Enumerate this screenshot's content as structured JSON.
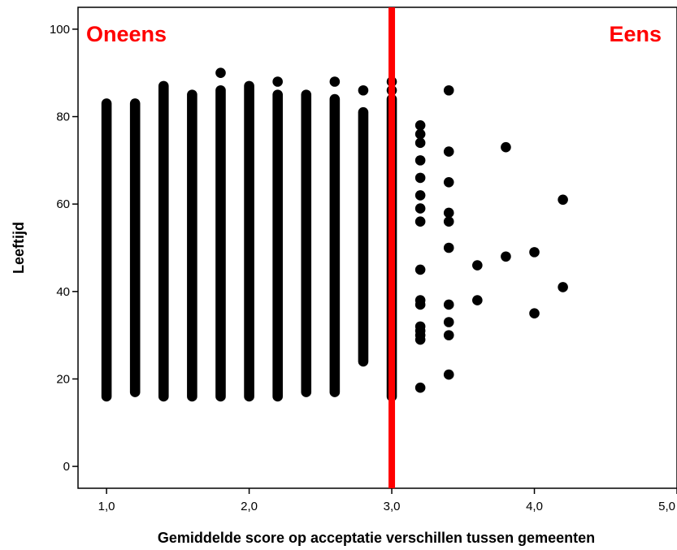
{
  "chart_data": {
    "type": "scatter",
    "title": "",
    "xlabel": "Gemiddelde score op acceptatie verschillen tussen gemeenten",
    "ylabel": "Leeftijd",
    "xlim": [
      0.8,
      5.0
    ],
    "ylim": [
      -5,
      105
    ],
    "x_ticks": [
      1.0,
      2.0,
      3.0,
      4.0,
      5.0
    ],
    "x_tick_labels": [
      "1,0",
      "2,0",
      "3,0",
      "4,0",
      "5,0"
    ],
    "y_ticks": [
      0,
      20,
      40,
      60,
      80,
      100
    ],
    "y_tick_labels": [
      "0",
      "20",
      "40",
      "60",
      "80",
      "100"
    ],
    "grid": false,
    "marker_color": "#000000",
    "reference_line": {
      "x": 3.0,
      "color": "#ff0000"
    },
    "annotations": [
      {
        "text": "Oneens",
        "color": "#ff0000",
        "position": "top-left"
      },
      {
        "text": "Eens",
        "color": "#ff0000",
        "position": "top-right"
      }
    ],
    "columns": [
      {
        "x": 1.0,
        "y_min": 16,
        "y_max": 83,
        "extra": []
      },
      {
        "x": 1.2,
        "y_min": 17,
        "y_max": 83,
        "extra": []
      },
      {
        "x": 1.4,
        "y_min": 16,
        "y_max": 87,
        "extra": []
      },
      {
        "x": 1.6,
        "y_min": 16,
        "y_max": 85,
        "extra": []
      },
      {
        "x": 1.8,
        "y_min": 16,
        "y_max": 86,
        "extra": [
          90
        ]
      },
      {
        "x": 2.0,
        "y_min": 16,
        "y_max": 87,
        "extra": []
      },
      {
        "x": 2.2,
        "y_min": 16,
        "y_max": 85,
        "extra": [
          88
        ]
      },
      {
        "x": 2.4,
        "y_min": 17,
        "y_max": 85,
        "extra": []
      },
      {
        "x": 2.6,
        "y_min": 17,
        "y_max": 84,
        "extra": [
          88
        ]
      },
      {
        "x": 2.8,
        "y_min": 24,
        "y_max": 81,
        "extra": [
          86
        ]
      },
      {
        "x": 3.0,
        "y_min": 16,
        "y_max": 84,
        "extra": [
          86,
          88
        ]
      }
    ],
    "points": [
      {
        "x": 3.2,
        "y": 78
      },
      {
        "x": 3.2,
        "y": 76
      },
      {
        "x": 3.2,
        "y": 74
      },
      {
        "x": 3.2,
        "y": 70
      },
      {
        "x": 3.2,
        "y": 66
      },
      {
        "x": 3.2,
        "y": 62
      },
      {
        "x": 3.2,
        "y": 59
      },
      {
        "x": 3.2,
        "y": 56
      },
      {
        "x": 3.2,
        "y": 45
      },
      {
        "x": 3.2,
        "y": 38
      },
      {
        "x": 3.2,
        "y": 37
      },
      {
        "x": 3.2,
        "y": 32
      },
      {
        "x": 3.2,
        "y": 31
      },
      {
        "x": 3.2,
        "y": 30
      },
      {
        "x": 3.2,
        "y": 29
      },
      {
        "x": 3.2,
        "y": 18
      },
      {
        "x": 3.4,
        "y": 86
      },
      {
        "x": 3.4,
        "y": 72
      },
      {
        "x": 3.4,
        "y": 65
      },
      {
        "x": 3.4,
        "y": 58
      },
      {
        "x": 3.4,
        "y": 56
      },
      {
        "x": 3.4,
        "y": 50
      },
      {
        "x": 3.4,
        "y": 37
      },
      {
        "x": 3.4,
        "y": 33
      },
      {
        "x": 3.4,
        "y": 30
      },
      {
        "x": 3.4,
        "y": 21
      },
      {
        "x": 3.6,
        "y": 46
      },
      {
        "x": 3.6,
        "y": 38
      },
      {
        "x": 3.8,
        "y": 73
      },
      {
        "x": 3.8,
        "y": 48
      },
      {
        "x": 4.0,
        "y": 49
      },
      {
        "x": 4.0,
        "y": 35
      },
      {
        "x": 4.2,
        "y": 61
      },
      {
        "x": 4.2,
        "y": 41
      }
    ]
  }
}
